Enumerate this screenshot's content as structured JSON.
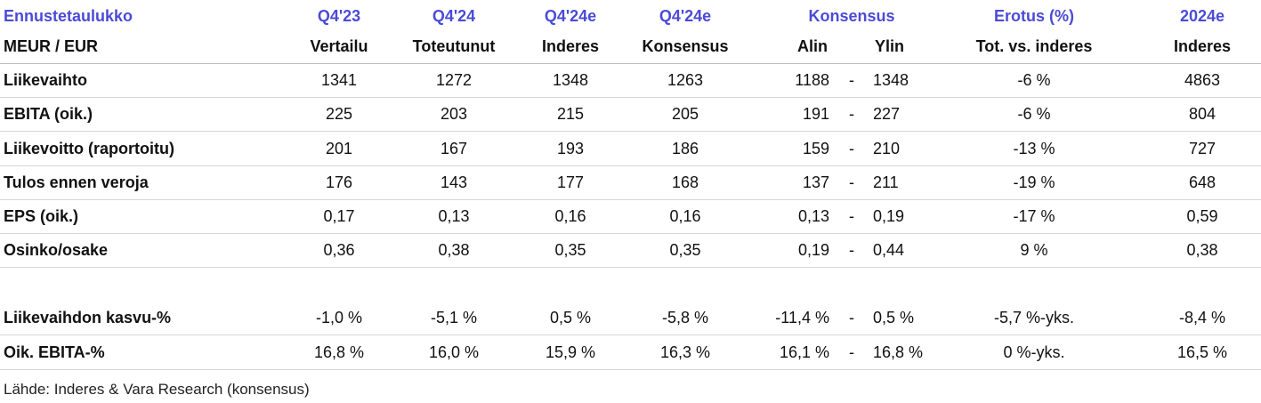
{
  "header": {
    "row1": [
      "Ennustetaulukko",
      "Q4'23",
      "Q4'24",
      "Q4'24e",
      "Q4'24e",
      "Konsensus",
      "Erotus (%)",
      "2024e"
    ],
    "row2": [
      "MEUR / EUR",
      "Vertailu",
      "Toteutunut",
      "Inderes",
      "Konsensus",
      "Alin",
      "Ylin",
      "Tot. vs. inderes",
      "Inderes"
    ]
  },
  "table": {
    "rows": [
      [
        "Liikevaihto",
        "1341",
        "1272",
        "1348",
        "1263",
        "1188",
        "-",
        "1348",
        "-6 %",
        "4863"
      ],
      [
        "EBITA (oik.)",
        "225",
        "203",
        "215",
        "205",
        "191",
        "-",
        "227",
        "-6 %",
        "804"
      ],
      [
        "Liikevoitto (raportoitu)",
        "201",
        "167",
        "193",
        "186",
        "159",
        "-",
        "210",
        "-13 %",
        "727"
      ],
      [
        "Tulos ennen veroja",
        "176",
        "143",
        "177",
        "168",
        "137",
        "-",
        "211",
        "-19 %",
        "648"
      ],
      [
        "EPS (oik.)",
        "0,17",
        "0,13",
        "0,16",
        "0,16",
        "0,13",
        "-",
        "0,19",
        "-17 %",
        "0,59"
      ],
      [
        "Osinko/osake",
        "0,36",
        "0,38",
        "0,35",
        "0,35",
        "0,19",
        "-",
        "0,44",
        "9 %",
        "0,38"
      ],
      [
        "Liikevaihdon kasvu-%",
        "-1,0 %",
        "-5,1 %",
        "0,5 %",
        "-5,8 %",
        "-11,4 %",
        "-",
        "0,5 %",
        "-5,7 %-yks.",
        "-8,4 %"
      ],
      [
        "Oik. EBITA-%",
        "16,8 %",
        "16,0 %",
        "15,9 %",
        "16,3 %",
        "16,1 %",
        "-",
        "16,8 %",
        "0 %-yks.",
        "16,5 %"
      ]
    ]
  },
  "source": "Lähde: Inderes & Vara Research  (konsensus)"
}
